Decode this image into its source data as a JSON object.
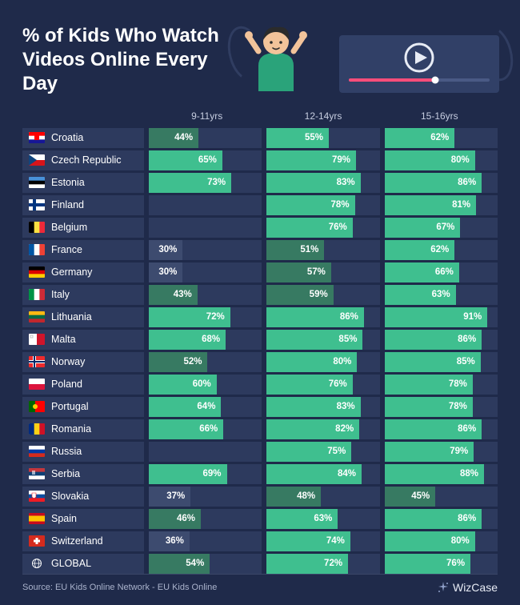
{
  "title": "% of Kids Who Watch Videos Online Every Day",
  "columns": [
    "9-11yrs",
    "12-14yrs",
    "15-16yrs"
  ],
  "source": "Source: EU Kids Online Network - EU Kids Online",
  "brand": "WizCase",
  "colors": {
    "bg": "#1f2a4a",
    "track": "#2d3a5e",
    "green": "#3fbf8f",
    "dark_green": "#377a62",
    "dull": "#3d4b6f"
  },
  "rows": [
    {
      "country": "Croatia",
      "flag": "hr",
      "vals": [
        44,
        55,
        62
      ],
      "fills": [
        "dark_green",
        "green",
        "green"
      ]
    },
    {
      "country": "Czech Republic",
      "flag": "cz",
      "vals": [
        65,
        79,
        80
      ],
      "fills": [
        "green",
        "green",
        "green"
      ]
    },
    {
      "country": "Estonia",
      "flag": "ee",
      "vals": [
        73,
        83,
        86
      ],
      "fills": [
        "green",
        "green",
        "green"
      ]
    },
    {
      "country": "Finland",
      "flag": "fi",
      "vals": [
        null,
        78,
        81
      ],
      "fills": [
        null,
        "green",
        "green"
      ]
    },
    {
      "country": "Belgium",
      "flag": "be",
      "vals": [
        null,
        76,
        67
      ],
      "fills": [
        null,
        "green",
        "green"
      ]
    },
    {
      "country": "France",
      "flag": "fr",
      "vals": [
        30,
        51,
        62
      ],
      "fills": [
        "dull",
        "dark_green",
        "green"
      ]
    },
    {
      "country": "Germany",
      "flag": "de",
      "vals": [
        30,
        57,
        66
      ],
      "fills": [
        "dull",
        "dark_green",
        "green"
      ]
    },
    {
      "country": "Italy",
      "flag": "it",
      "vals": [
        43,
        59,
        63
      ],
      "fills": [
        "dark_green",
        "dark_green",
        "green"
      ]
    },
    {
      "country": "Lithuania",
      "flag": "lt",
      "vals": [
        72,
        86,
        91
      ],
      "fills": [
        "green",
        "green",
        "green"
      ]
    },
    {
      "country": "Malta",
      "flag": "mt",
      "vals": [
        68,
        85,
        86
      ],
      "fills": [
        "green",
        "green",
        "green"
      ]
    },
    {
      "country": "Norway",
      "flag": "no",
      "vals": [
        52,
        80,
        85
      ],
      "fills": [
        "dark_green",
        "green",
        "green"
      ]
    },
    {
      "country": "Poland",
      "flag": "pl",
      "vals": [
        60,
        76,
        78
      ],
      "fills": [
        "green",
        "green",
        "green"
      ]
    },
    {
      "country": "Portugal",
      "flag": "pt",
      "vals": [
        64,
        83,
        78
      ],
      "fills": [
        "green",
        "green",
        "green"
      ]
    },
    {
      "country": "Romania",
      "flag": "ro",
      "vals": [
        66,
        82,
        86
      ],
      "fills": [
        "green",
        "green",
        "green"
      ]
    },
    {
      "country": "Russia",
      "flag": "ru",
      "vals": [
        null,
        75,
        79
      ],
      "fills": [
        null,
        "green",
        "green"
      ]
    },
    {
      "country": "Serbia",
      "flag": "rs",
      "vals": [
        69,
        84,
        88
      ],
      "fills": [
        "green",
        "green",
        "green"
      ]
    },
    {
      "country": "Slovakia",
      "flag": "sk",
      "vals": [
        37,
        48,
        45
      ],
      "fills": [
        "dull",
        "dark_green",
        "dark_green"
      ]
    },
    {
      "country": "Spain",
      "flag": "es",
      "vals": [
        46,
        63,
        86
      ],
      "fills": [
        "dark_green",
        "green",
        "green"
      ]
    },
    {
      "country": "Switzerland",
      "flag": "ch",
      "vals": [
        36,
        74,
        80
      ],
      "fills": [
        "dull",
        "green",
        "green"
      ]
    },
    {
      "country": "GLOBAL",
      "flag": "globe",
      "vals": [
        54,
        72,
        76
      ],
      "fills": [
        "dark_green",
        "green",
        "green"
      ]
    }
  ]
}
